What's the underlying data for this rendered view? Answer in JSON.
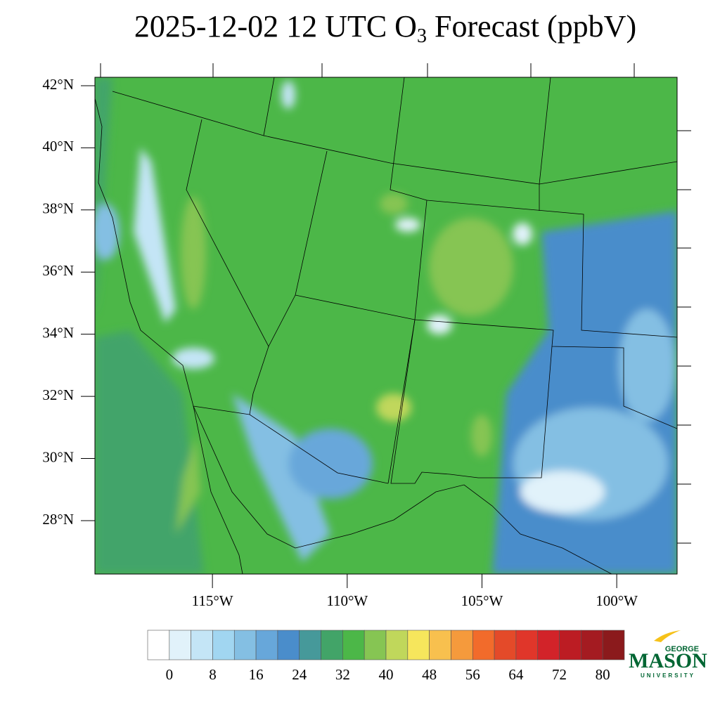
{
  "chart_data": {
    "type": "map",
    "title": {
      "main": "2025-12-02 12 UTC O",
      "subscript": "3",
      "rest": " Forecast (ppbV)"
    },
    "lat_range": [
      26.28,
      42.27
    ],
    "lon_range": [
      -119.36,
      -97.76
    ],
    "lat_ticks": [
      {
        "value": 42,
        "label": "42°N"
      },
      {
        "value": 40,
        "label": "40°N"
      },
      {
        "value": 38,
        "label": "38°N"
      },
      {
        "value": 36,
        "label": "36°N"
      },
      {
        "value": 34,
        "label": "34°N"
      },
      {
        "value": 32,
        "label": "32°N"
      },
      {
        "value": 30,
        "label": "30°N"
      },
      {
        "value": 28,
        "label": "28°N"
      }
    ],
    "lon_ticks": [
      {
        "value": -115,
        "label": "115°W"
      },
      {
        "value": -110,
        "label": "110°W"
      },
      {
        "value": -105,
        "label": "105°W"
      },
      {
        "value": -100,
        "label": "100°W"
      }
    ],
    "colorbar": {
      "range": [
        -4,
        84
      ],
      "ticks": [
        0,
        8,
        16,
        24,
        32,
        40,
        48,
        56,
        64,
        72,
        80
      ],
      "colors": [
        "#ffffff",
        "#e1f2fa",
        "#c4e5f6",
        "#a1d6f1",
        "#84bfe3",
        "#67a7da",
        "#4a8dcb",
        "#46999a",
        "#42a468",
        "#4cb748",
        "#86c553",
        "#c0d75b",
        "#f6e65c",
        "#f8c04e",
        "#f59a3c",
        "#f26b2b",
        "#e44a29",
        "#e0362a",
        "#d22329",
        "#bc1c23",
        "#a41b21",
        "#8b1a1c"
      ]
    },
    "logo": {
      "top": "GEORGE",
      "main": "MASON",
      "bottom": "UNIVERSITY"
    }
  }
}
